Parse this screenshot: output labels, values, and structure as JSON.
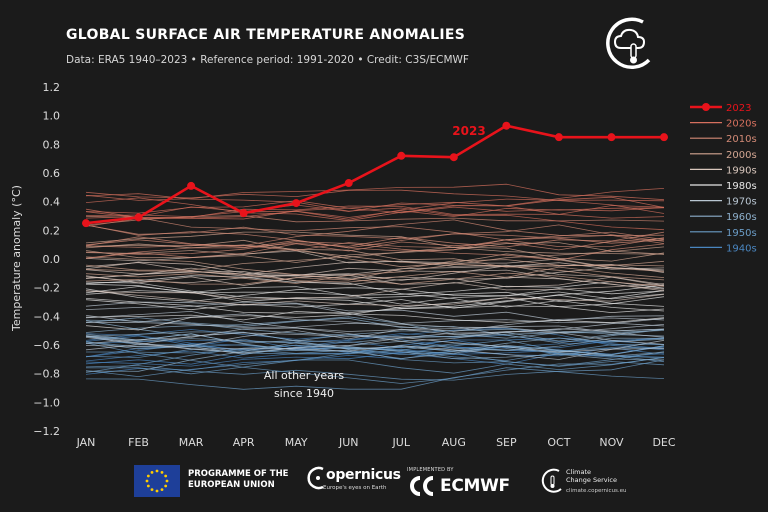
{
  "header": {
    "title": "GLOBAL SURFACE AIR TEMPERATURE ANOMALIES",
    "subtitle": "Data: ERA5 1940–2023 • Reference period: 1991-2020 • Credit: C3S/ECMWF"
  },
  "logo_icon": "cloud-thermometer-icon",
  "chart_data": {
    "type": "line",
    "ylabel": "Temperature anomaly (°C)",
    "xlabel": "",
    "categories": [
      "JAN",
      "FEB",
      "MAR",
      "APR",
      "MAY",
      "JUN",
      "JUL",
      "AUG",
      "SEP",
      "OCT",
      "NOV",
      "DEC"
    ],
    "ylim": [
      -1.2,
      1.2
    ],
    "yticks": [
      "1.2",
      "1.0",
      "0.8",
      "0.6",
      "0.4",
      "0.2",
      "0.0",
      "−0.2",
      "−0.4",
      "−0.6",
      "−0.8",
      "−1.0",
      "−1.2"
    ],
    "grid": false,
    "legend_position": "right",
    "highlight": {
      "name": "2023",
      "values": [
        0.25,
        0.29,
        0.51,
        0.32,
        0.39,
        0.53,
        0.72,
        0.71,
        0.93,
        0.85,
        0.85,
        0.85
      ],
      "color": "#e8131b"
    },
    "annotation_other": "All other years\nsince 1940",
    "legend": [
      {
        "label": "2023",
        "color": "#e8131b"
      },
      {
        "label": "2020s",
        "color": "#d6705e"
      },
      {
        "label": "2010s",
        "color": "#d38a76"
      },
      {
        "label": "2000s",
        "color": "#d3a692"
      },
      {
        "label": "1990s",
        "color": "#d8c6bc"
      },
      {
        "label": "1980s",
        "color": "#e6e6e6"
      },
      {
        "label": "1970s",
        "color": "#b9c6d2"
      },
      {
        "label": "1960s",
        "color": "#8eb0cc"
      },
      {
        "label": "1950s",
        "color": "#6b9cc6"
      },
      {
        "label": "1940s",
        "color": "#4a86c0"
      }
    ],
    "decades": [
      {
        "name": "1940s",
        "color": "#4a86c0",
        "baseline": -0.62
      },
      {
        "name": "1950s",
        "color": "#6b9cc6",
        "baseline": -0.7
      },
      {
        "name": "1960s",
        "color": "#8eb0cc",
        "baseline": -0.6
      },
      {
        "name": "1970s",
        "color": "#b9c6d2",
        "baseline": -0.5
      },
      {
        "name": "1980s",
        "color": "#e6e6e6",
        "baseline": -0.3
      },
      {
        "name": "1990s",
        "color": "#d8c6bc",
        "baseline": -0.15
      },
      {
        "name": "2000s",
        "color": "#d3a692",
        "baseline": 0.0
      },
      {
        "name": "2010s",
        "color": "#d38a76",
        "baseline": 0.15
      },
      {
        "name": "2020s",
        "color": "#d6705e",
        "baseline": 0.35
      }
    ]
  },
  "footer": {
    "eu_line1": "PROGRAMME OF THE",
    "eu_line2": "EUROPEAN UNION",
    "copernicus": "opernicus",
    "copernicus_sub": "Europe's eyes on Earth",
    "implemented_by": "IMPLEMENTED BY",
    "ecmwf": "ECMWF",
    "c3s_line1": "Climate",
    "c3s_line2": "Change Service",
    "c3s_url": "climate.copernicus.eu"
  }
}
